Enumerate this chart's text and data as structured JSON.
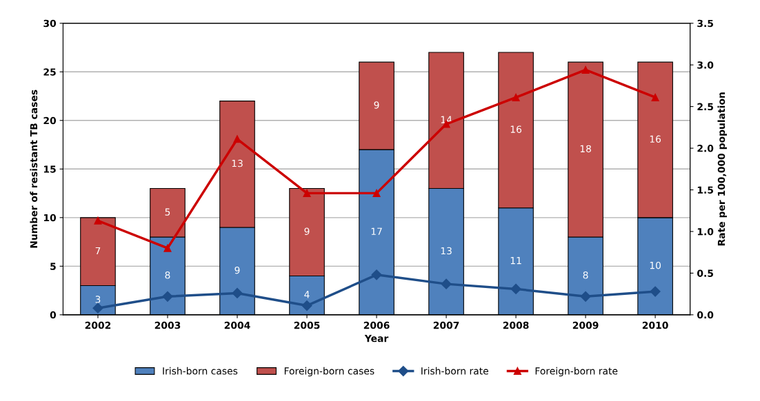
{
  "chart_data": {
    "type": "bar",
    "stacked": true,
    "xlabel": "Year",
    "ylabel": "Number of resistant TB cases",
    "y2label": "Rate per 100,000 population",
    "categories": [
      "2002",
      "2003",
      "2004",
      "2005",
      "2006",
      "2007",
      "2008",
      "2009",
      "2010"
    ],
    "series": [
      {
        "name": "Irish-born cases",
        "color": "#4f81bd",
        "values": [
          3,
          8,
          9,
          4,
          17,
          13,
          11,
          8,
          10
        ]
      },
      {
        "name": "Foreign-born cases",
        "color": "#c0504d",
        "values": [
          7,
          5,
          13,
          9,
          9,
          14,
          16,
          18,
          16
        ]
      },
      {
        "name": "Irish-born rate",
        "type": "line",
        "axis": "y2",
        "marker": "diamond",
        "color": "#1f4e89",
        "values": [
          0.08,
          0.22,
          0.26,
          0.11,
          0.48,
          0.37,
          0.31,
          0.22,
          0.28
        ]
      },
      {
        "name": "Foreign-born rate",
        "type": "line",
        "axis": "y2",
        "marker": "triangle",
        "color": "#cc0000",
        "values": [
          1.13,
          0.8,
          2.11,
          1.46,
          1.46,
          2.29,
          2.61,
          2.94,
          2.61
        ]
      }
    ],
    "value_labels": [
      [
        "3",
        "8",
        "9",
        "4",
        "17",
        "13",
        "11",
        "8",
        "10"
      ],
      [
        "7",
        "5",
        "13",
        "9",
        "9",
        "14",
        "16",
        "18",
        "16"
      ],
      null,
      null
    ],
    "ylim": [
      0,
      30
    ],
    "yticks": [
      0,
      5,
      10,
      15,
      20,
      25,
      30
    ],
    "y2lim": [
      0,
      3.5
    ],
    "y2ticks": [
      {
        "value": 0,
        "label": "0.0"
      },
      {
        "value": 0.5,
        "label": "0.5"
      },
      {
        "value": 1,
        "label": "1.0"
      },
      {
        "value": 1.5,
        "label": "1.5"
      },
      {
        "value": 2,
        "label": "2.0"
      },
      {
        "value": 2.5,
        "label": "2.5"
      },
      {
        "value": 3,
        "label": "3.0"
      },
      {
        "value": 3.5,
        "label": "3.5"
      }
    ],
    "grid": "y",
    "legend": "bottom",
    "line_style": "solid"
  }
}
